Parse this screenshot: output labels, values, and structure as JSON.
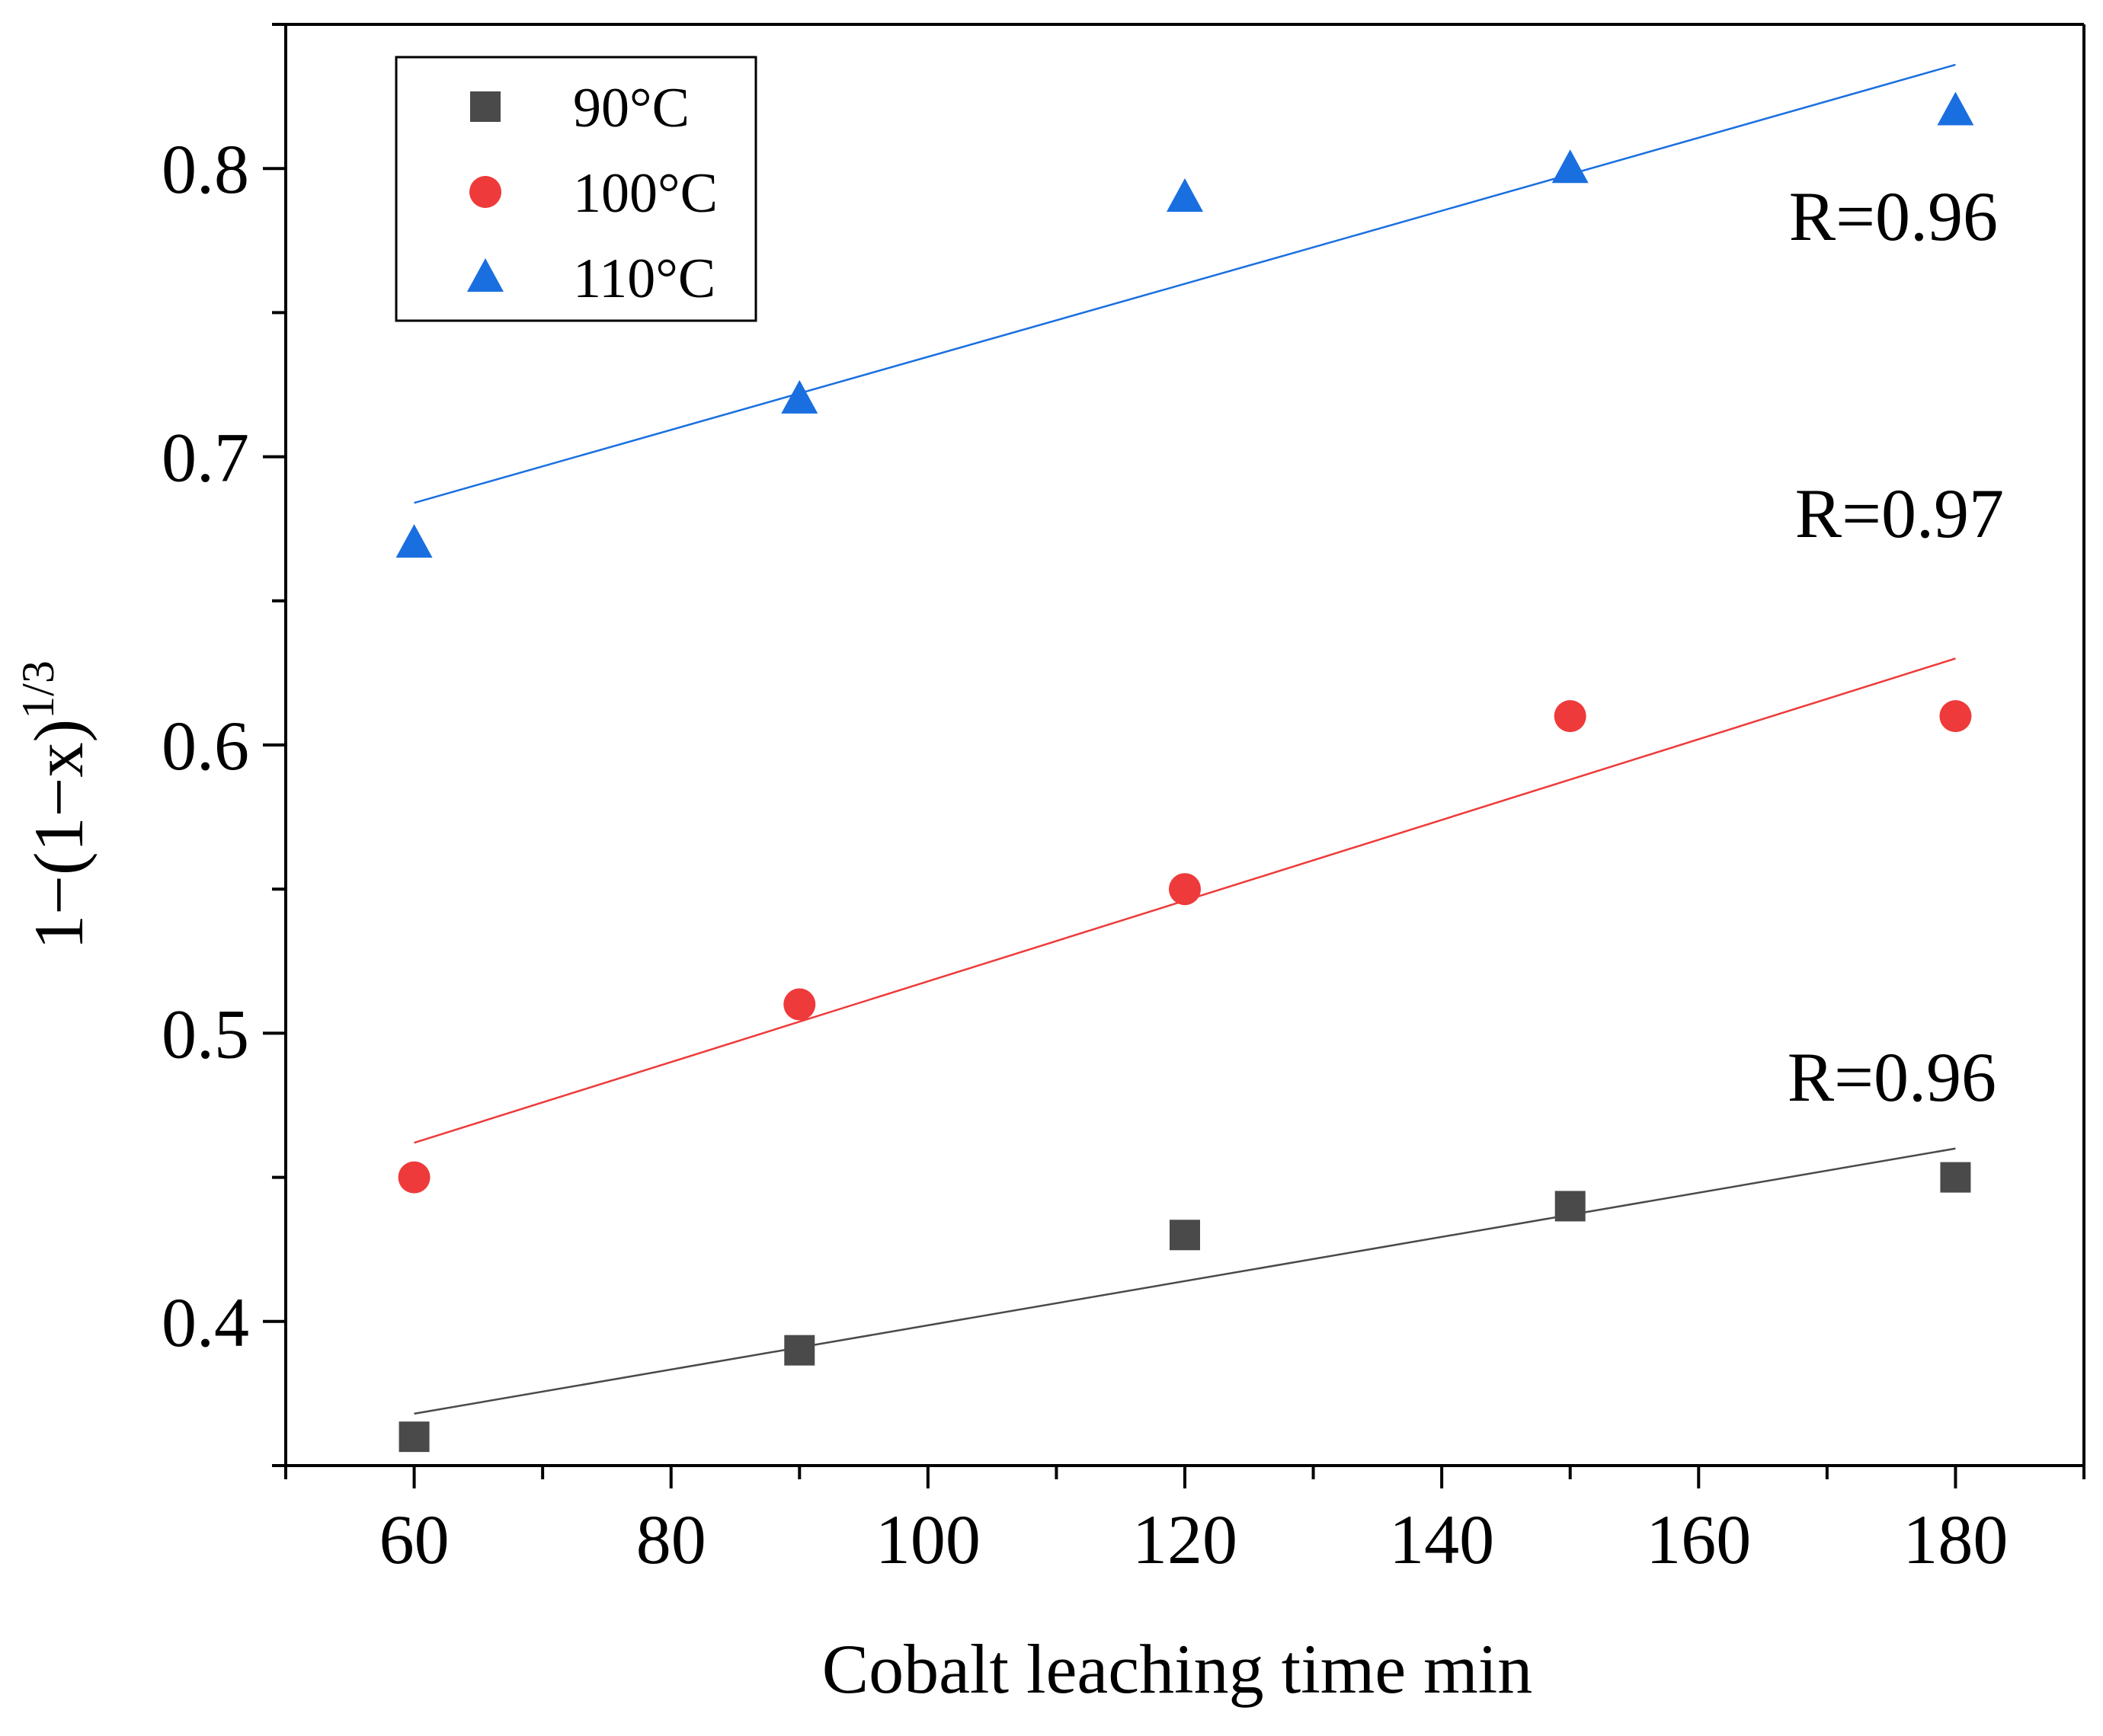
{
  "chart_data": {
    "type": "scatter",
    "title": "",
    "xlabel": "Cobalt leaching time min",
    "ylabel_parts": {
      "base": "1−(1−x)",
      "sup": "1/3"
    },
    "xlim": [
      50,
      190
    ],
    "ylim": [
      0.35,
      0.85
    ],
    "xticks": [
      60,
      80,
      100,
      120,
      140,
      160,
      180
    ],
    "yticks": [
      0.4,
      0.5,
      0.6,
      0.7,
      0.8
    ],
    "xtick_labels": [
      "60",
      "80",
      "100",
      "120",
      "140",
      "160",
      "180"
    ],
    "ytick_labels": [
      "0.4",
      "0.5",
      "0.6",
      "0.7",
      "0.8"
    ],
    "legend_position": "top-left",
    "series": [
      {
        "name": "90°C",
        "marker": "square",
        "color": "#4a4a4a",
        "x": [
          60,
          90,
          120,
          150,
          180
        ],
        "y": [
          0.36,
          0.39,
          0.43,
          0.44,
          0.45
        ],
        "fit": {
          "x": [
            60,
            180
          ],
          "y": [
            0.368,
            0.46
          ]
        },
        "r_label": "R=0.96"
      },
      {
        "name": "100°C",
        "marker": "circle",
        "color": "#ee3a3a",
        "x": [
          60,
          90,
          120,
          150,
          180
        ],
        "y": [
          0.45,
          0.51,
          0.55,
          0.61,
          0.61
        ],
        "fit": {
          "x": [
            60,
            180
          ],
          "y": [
            0.462,
            0.63
          ]
        },
        "r_label": "R=0.97"
      },
      {
        "name": "110°C",
        "marker": "triangle",
        "color": "#1a6fe0",
        "x": [
          60,
          90,
          120,
          150,
          180
        ],
        "y": [
          0.67,
          0.72,
          0.79,
          0.8,
          0.82
        ],
        "fit": {
          "x": [
            60,
            180
          ],
          "y": [
            0.684,
            0.836
          ]
        },
        "r_label": "R=0.96"
      }
    ]
  }
}
